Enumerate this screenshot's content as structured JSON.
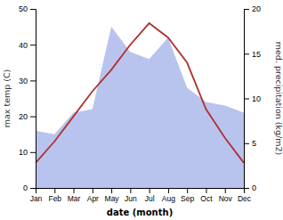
{
  "chart_data": {
    "type": "line",
    "xlabel": "date (month)",
    "ylabel": "max temp (C)",
    "y2label": "med. precipitation (kg/m2)",
    "categories": [
      "Jan",
      "Feb",
      "Mar",
      "Apr",
      "May",
      "Jun",
      "Jul",
      "Aug",
      "Sep",
      "Oct",
      "Nov",
      "Dec"
    ],
    "series": [
      {
        "type": "area",
        "color": "#b8c4ee",
        "values": [
          16,
          15,
          21,
          22,
          45,
          38,
          36,
          42,
          28,
          24,
          23,
          21
        ]
      },
      {
        "type": "line",
        "color": "#b03030",
        "values": [
          7,
          13,
          20,
          27,
          33,
          40,
          46,
          42,
          35,
          22,
          14,
          7
        ]
      }
    ],
    "ylim": [
      0,
      50
    ],
    "yticks": [
      0,
      10,
      20,
      30,
      40,
      50
    ],
    "y2lim": [
      0,
      20
    ],
    "y2ticks": [
      0,
      5,
      10,
      15,
      20
    ],
    "grid": false
  }
}
